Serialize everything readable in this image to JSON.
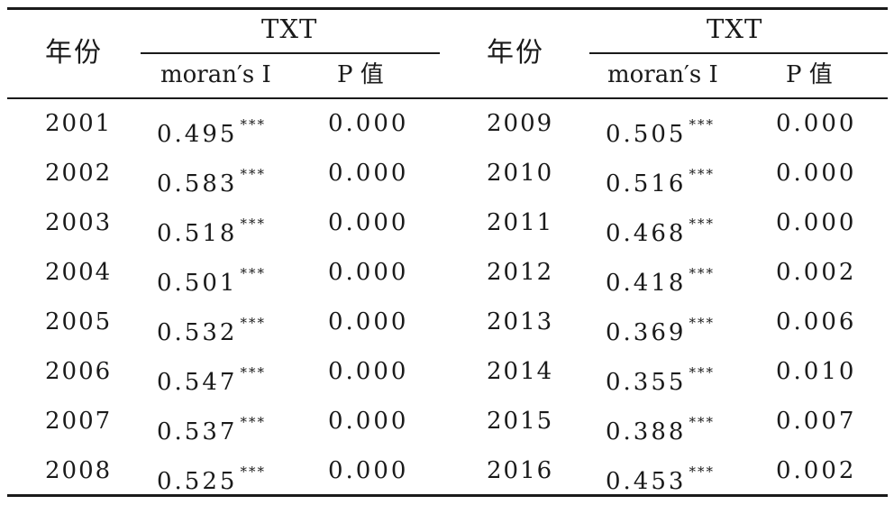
{
  "header": {
    "year_label_left": "年份",
    "year_label_right": "年份",
    "group_label_left": "TXT",
    "group_label_right": "TXT",
    "sub_moran_left": "moran′s I",
    "sub_p_left": "P 值",
    "sub_moran_right": "moran′s I",
    "sub_p_right": "P 值"
  },
  "rows": [
    {
      "year_left": "2001",
      "moran_left": "0.495",
      "sig_left": "***",
      "p_left": "0.000",
      "year_right": "2009",
      "moran_right": "0.505",
      "sig_right": "***",
      "p_right": "0.000"
    },
    {
      "year_left": "2002",
      "moran_left": "0.583",
      "sig_left": "***",
      "p_left": "0.000",
      "year_right": "2010",
      "moran_right": "0.516",
      "sig_right": "***",
      "p_right": "0.000"
    },
    {
      "year_left": "2003",
      "moran_left": "0.518",
      "sig_left": "***",
      "p_left": "0.000",
      "year_right": "2011",
      "moran_right": "0.468",
      "sig_right": "***",
      "p_right": "0.000"
    },
    {
      "year_left": "2004",
      "moran_left": "0.501",
      "sig_left": "***",
      "p_left": "0.000",
      "year_right": "2012",
      "moran_right": "0.418",
      "sig_right": "***",
      "p_right": "0.002"
    },
    {
      "year_left": "2005",
      "moran_left": "0.532",
      "sig_left": "***",
      "p_left": "0.000",
      "year_right": "2013",
      "moran_right": "0.369",
      "sig_right": "***",
      "p_right": "0.006"
    },
    {
      "year_left": "2006",
      "moran_left": "0.547",
      "sig_left": "***",
      "p_left": "0.000",
      "year_right": "2014",
      "moran_right": "0.355",
      "sig_right": "***",
      "p_right": "0.010"
    },
    {
      "year_left": "2007",
      "moran_left": "0.537",
      "sig_left": "***",
      "p_left": "0.000",
      "year_right": "2015",
      "moran_right": "0.388",
      "sig_right": "***",
      "p_right": "0.007"
    },
    {
      "year_left": "2008",
      "moran_left": "0.525",
      "sig_left": "***",
      "p_left": "0.000",
      "year_right": "2016",
      "moran_right": "0.453",
      "sig_right": "***",
      "p_right": "0.002"
    }
  ]
}
